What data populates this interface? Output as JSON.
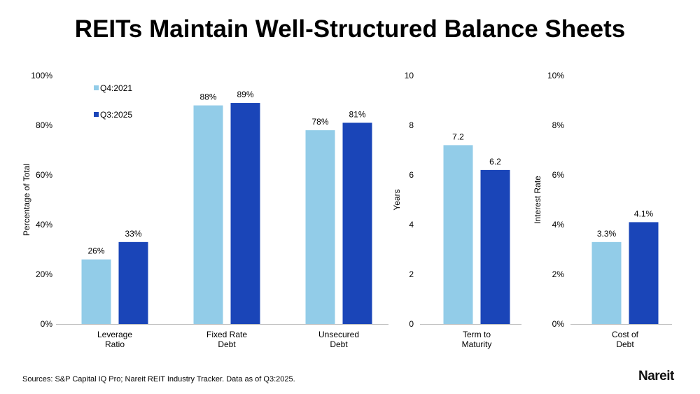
{
  "title": "REITs Maintain Well-Structured Balance Sheets",
  "source": "Sources: S&P Capital IQ Pro; Nareit REIT Industry Tracker. Data as of Q3:2025.",
  "logo": "Nareit",
  "colors": {
    "Q4:2021": "#92CCE8",
    "Q3:2025": "#1A45B8"
  },
  "chart_data": [
    {
      "type": "bar",
      "ylabel": "Percentage of Total",
      "ylim": [
        0,
        100
      ],
      "yticks": [
        "0%",
        "20%",
        "40%",
        "60%",
        "80%",
        "100%"
      ],
      "categories": [
        [
          "Leverage",
          "Ratio"
        ],
        [
          "Fixed Rate",
          "Debt"
        ],
        [
          "Unsecured",
          "Debt"
        ]
      ],
      "legend": "top-left",
      "series": [
        {
          "name": "Q4:2021",
          "values": [
            26,
            88,
            78
          ],
          "labels": [
            "26%",
            "88%",
            "78%"
          ]
        },
        {
          "name": "Q3:2025",
          "values": [
            33,
            89,
            81
          ],
          "labels": [
            "33%",
            "89%",
            "81%"
          ]
        }
      ]
    },
    {
      "type": "bar",
      "ylabel": "Years",
      "ylim": [
        0,
        10
      ],
      "yticks": [
        "0",
        "2",
        "4",
        "6",
        "8",
        "10"
      ],
      "categories": [
        [
          "Term to",
          "Maturity"
        ]
      ],
      "series": [
        {
          "name": "Q4:2021",
          "values": [
            7.2
          ],
          "labels": [
            "7.2"
          ]
        },
        {
          "name": "Q3:2025",
          "values": [
            6.2
          ],
          "labels": [
            "6.2"
          ]
        }
      ]
    },
    {
      "type": "bar",
      "ylabel": "Interest Rate",
      "ylim": [
        0,
        10
      ],
      "yticks": [
        "0%",
        "2%",
        "4%",
        "6%",
        "8%",
        "10%"
      ],
      "categories": [
        [
          "Cost of",
          "Debt"
        ]
      ],
      "series": [
        {
          "name": "Q4:2021",
          "values": [
            3.3
          ],
          "labels": [
            "3.3%"
          ]
        },
        {
          "name": "Q3:2025",
          "values": [
            4.1
          ],
          "labels": [
            "4.1%"
          ]
        }
      ]
    }
  ]
}
